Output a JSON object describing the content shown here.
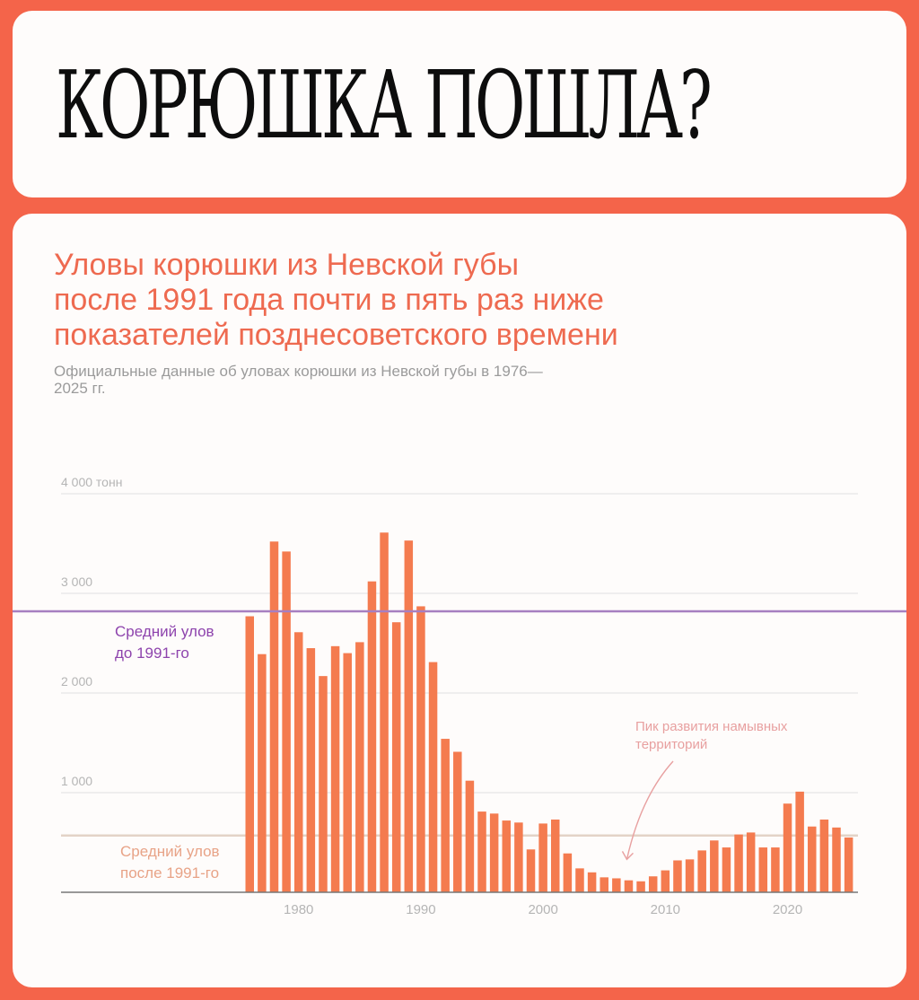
{
  "header": {
    "title": "КОРЮШКА ПОШЛА?"
  },
  "chart": {
    "title": "Уловы корюшки из Невской губы\nпосле 1991 года почти в пять раз ниже\nпоказателей позднесоветского времени",
    "subtitle": "Официальные данные об уловах корюшки из Невской губы в 1976—2025 гг."
  },
  "colors": {
    "background": "#f4644a",
    "bar": "#f47b4f",
    "avg_before": "#a77fc0",
    "avg_before_text": "#8e44ad",
    "avg_after": "#e3d3c7",
    "avg_after_text": "#e8a387",
    "annotation": "#e8a0a0",
    "grid": "#e6e6e6",
    "tick_text": "#b5b5b5"
  },
  "chart_data": {
    "type": "bar",
    "unit": "тонн",
    "x": [
      1976,
      1977,
      1978,
      1979,
      1980,
      1981,
      1982,
      1983,
      1984,
      1985,
      1986,
      1987,
      1988,
      1989,
      1990,
      1991,
      1992,
      1993,
      1994,
      1995,
      1996,
      1997,
      1998,
      1999,
      2000,
      2001,
      2002,
      2003,
      2004,
      2005,
      2006,
      2007,
      2008,
      2009,
      2010,
      2011,
      2012,
      2013,
      2014,
      2015,
      2016,
      2017,
      2018,
      2019,
      2020,
      2021,
      2022,
      2023,
      2024,
      2025
    ],
    "values": [
      2770,
      2390,
      3520,
      3420,
      2610,
      2450,
      2170,
      2470,
      2400,
      2510,
      3120,
      3610,
      2710,
      3530,
      2870,
      2310,
      1540,
      1410,
      1120,
      810,
      790,
      720,
      700,
      430,
      690,
      730,
      390,
      240,
      200,
      150,
      140,
      120,
      110,
      160,
      220,
      320,
      330,
      420,
      520,
      450,
      580,
      600,
      450,
      450,
      890,
      1010,
      660,
      730,
      650,
      550
    ],
    "ylim": [
      0,
      4000
    ],
    "y_ticks": [
      {
        "value": 1000,
        "label": "1 000"
      },
      {
        "value": 2000,
        "label": "2 000"
      },
      {
        "value": 3000,
        "label": "3 000"
      },
      {
        "value": 4000,
        "label": "4 000 тонн"
      }
    ],
    "x_ticks": [
      {
        "value": 1980,
        "label": "1980"
      },
      {
        "value": 1990,
        "label": "1990"
      },
      {
        "value": 2000,
        "label": "2000"
      },
      {
        "value": 2010,
        "label": "2010"
      },
      {
        "value": 2020,
        "label": "2020"
      }
    ],
    "reference_lines": [
      {
        "id": "before",
        "value": 2820,
        "label_lines": [
          "Средний улов",
          "до 1991-го"
        ]
      },
      {
        "id": "after",
        "value": 570,
        "label_lines": [
          "Средний улов",
          "после 1991-го"
        ]
      }
    ],
    "annotation": {
      "text_lines": [
        "Пик развития намывных",
        "территорий"
      ],
      "target_x": 2007,
      "target_value": 330
    }
  }
}
